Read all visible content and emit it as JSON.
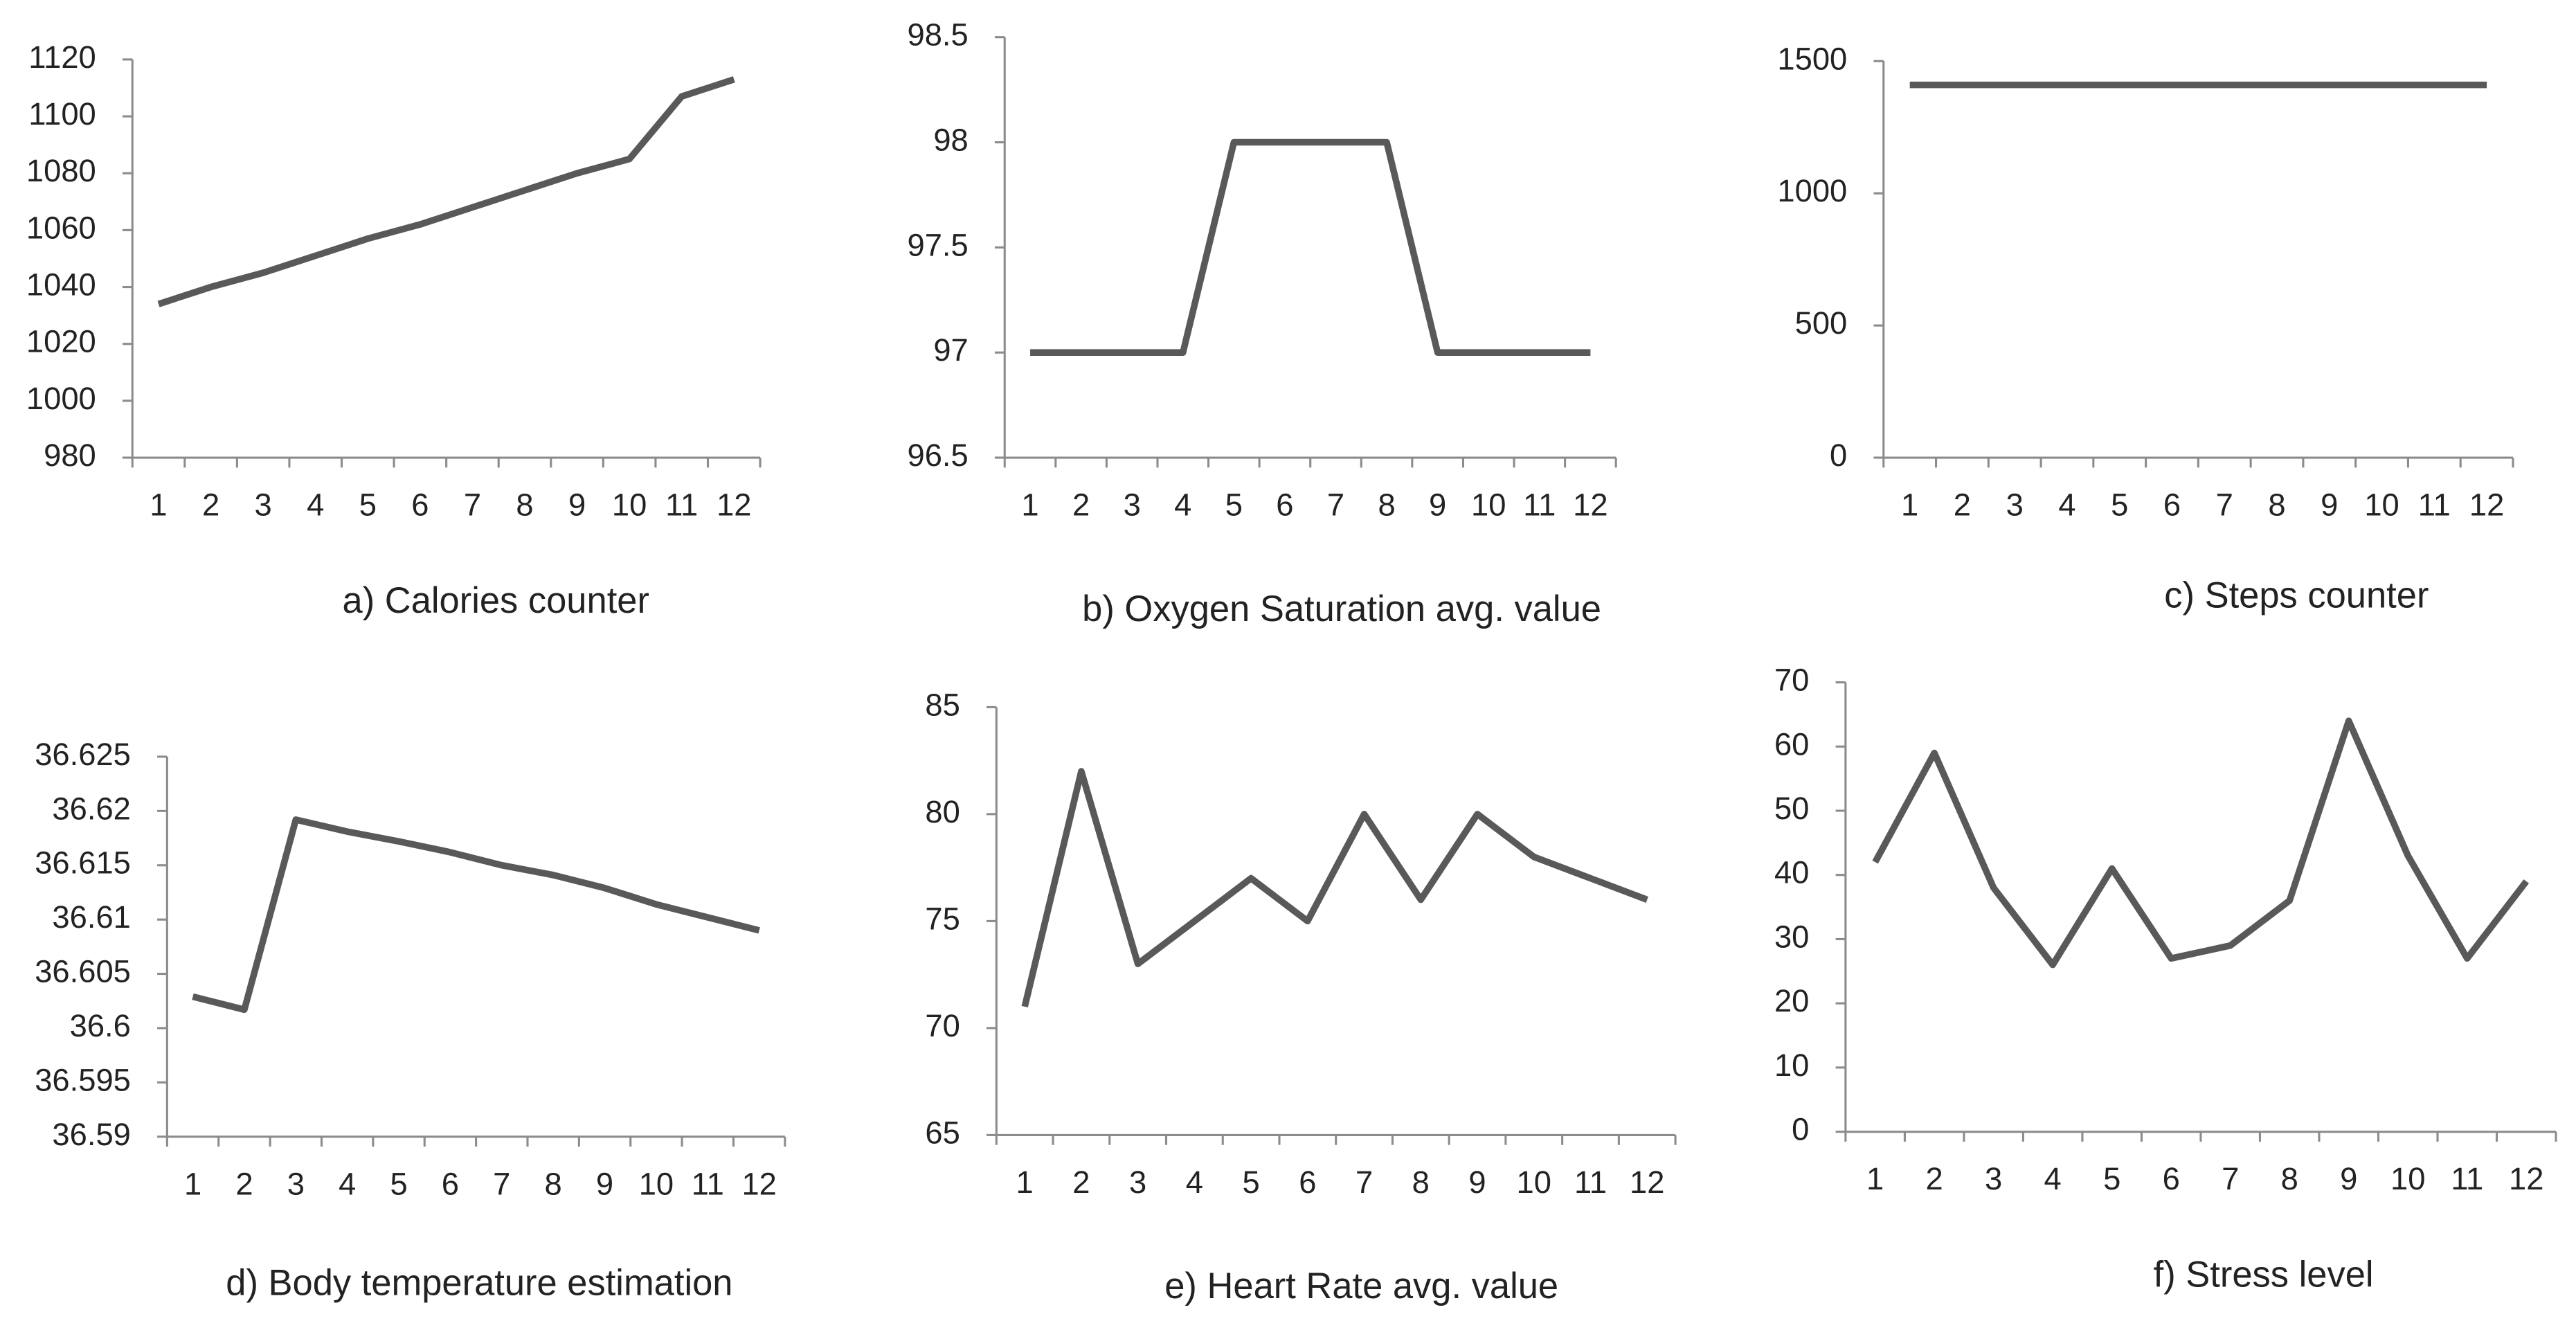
{
  "chart_data": [
    {
      "type": "line",
      "title": "a) Calories counter",
      "categories": [
        "1",
        "2",
        "3",
        "4",
        "5",
        "6",
        "7",
        "8",
        "9",
        "10",
        "11",
        "12"
      ],
      "series": [
        {
          "color": "#595959",
          "values": [
            1034,
            1040,
            1045,
            1051,
            1057,
            1062,
            1068,
            1074,
            1080,
            1085,
            1107,
            1113
          ]
        }
      ],
      "ylim": [
        980,
        1120
      ],
      "yticks": [
        980,
        1000,
        1020,
        1040,
        1060,
        1080,
        1100,
        1120
      ]
    },
    {
      "type": "line",
      "title": "b) Oxygen Saturation avg. value",
      "categories": [
        "1",
        "2",
        "3",
        "4",
        "5",
        "6",
        "7",
        "8",
        "9",
        "10",
        "11",
        "12"
      ],
      "series": [
        {
          "color": "#595959",
          "values": [
            97,
            97,
            97,
            97,
            98,
            98,
            98,
            98,
            97,
            97,
            97,
            97
          ]
        }
      ],
      "ylim": [
        96.5,
        98.5
      ],
      "yticks": [
        96.5,
        97,
        97.5,
        98,
        98.5
      ]
    },
    {
      "type": "line",
      "title": "c) Steps counter",
      "categories": [
        "1",
        "2",
        "3",
        "4",
        "5",
        "6",
        "7",
        "8",
        "9",
        "10",
        "11",
        "12"
      ],
      "series": [
        {
          "color": "#595959",
          "values": [
            1410,
            1410,
            1410,
            1410,
            1410,
            1410,
            1410,
            1410,
            1410,
            1410,
            1410,
            1410
          ]
        }
      ],
      "ylim": [
        0,
        1500
      ],
      "yticks": [
        0,
        500,
        1000,
        1500
      ]
    },
    {
      "type": "line",
      "title": "d) Body temperature estimation",
      "categories": [
        "1",
        "2",
        "3",
        "4",
        "5",
        "6",
        "7",
        "8",
        "9",
        "10",
        "11",
        "12"
      ],
      "series": [
        {
          "color": "#595959",
          "values": [
            36.6029,
            36.6017,
            36.6192,
            36.6181,
            36.6172,
            36.6162,
            36.615,
            36.6141,
            36.6129,
            36.6114,
            36.6102,
            36.609
          ]
        }
      ],
      "ylim": [
        36.59,
        36.625
      ],
      "yticks": [
        36.59,
        36.595,
        36.6,
        36.605,
        36.61,
        36.615,
        36.62,
        36.625
      ]
    },
    {
      "type": "line",
      "title": "e) Heart Rate avg. value",
      "categories": [
        "1",
        "2",
        "3",
        "4",
        "5",
        "6",
        "7",
        "8",
        "9",
        "10",
        "11",
        "12"
      ],
      "series": [
        {
          "color": "#595959",
          "values": [
            71,
            82,
            73,
            75,
            77,
            75,
            80,
            76,
            80,
            78,
            77,
            76
          ]
        }
      ],
      "ylim": [
        65,
        85
      ],
      "yticks": [
        65,
        70,
        75,
        80,
        85
      ]
    },
    {
      "type": "line",
      "title": "f) Stress level",
      "categories": [
        "1",
        "2",
        "3",
        "4",
        "5",
        "6",
        "7",
        "8",
        "9",
        "10",
        "11",
        "12"
      ],
      "series": [
        {
          "color": "#595959",
          "values": [
            42,
            59,
            38,
            26,
            41,
            27,
            29,
            36,
            64,
            43,
            27,
            39
          ]
        }
      ],
      "ylim": [
        0,
        70
      ],
      "yticks": [
        0,
        10,
        20,
        30,
        40,
        50,
        60,
        70
      ]
    }
  ]
}
